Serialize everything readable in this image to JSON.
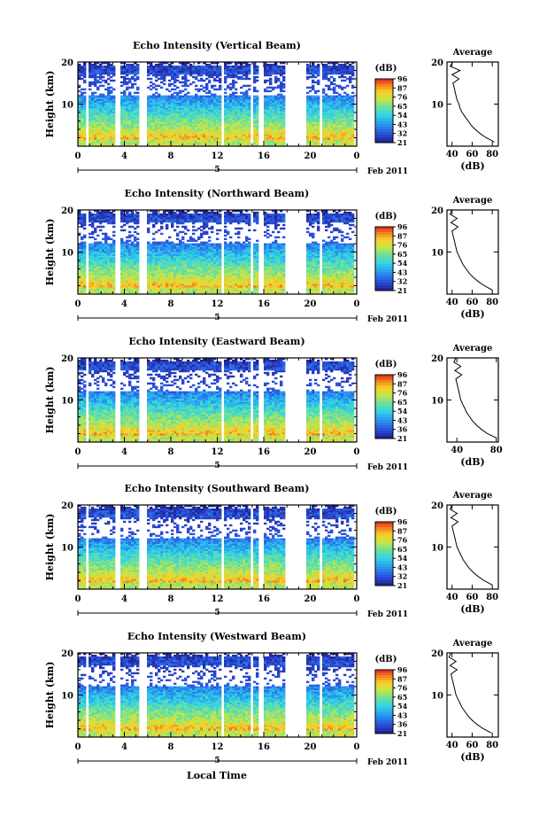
{
  "figure": {
    "bottom_label": "Local Time"
  },
  "chart_data": [
    {
      "type": "heatmap",
      "title": "Echo Intensity (Vertical Beam)",
      "ylabel": "Height (km)",
      "ylim": [
        0,
        20
      ],
      "yticks": [
        10,
        20
      ],
      "xticks": [
        "0",
        "4",
        "8",
        "12",
        "16",
        "20",
        "0"
      ],
      "xlim": [
        0,
        24
      ],
      "date_marker": "5",
      "date_label": "Feb 2011",
      "colorbar": {
        "unit": "(dB)",
        "ticks": [
          "96",
          "87",
          "76",
          "65",
          "54",
          "43",
          "32",
          "21"
        ],
        "range": [
          21,
          96
        ]
      },
      "gaps_hours": [
        [
          0.7,
          1.0
        ],
        [
          3.2,
          3.7
        ],
        [
          5.3,
          5.9
        ],
        [
          12.3,
          12.5
        ],
        [
          14.8,
          15.0
        ],
        [
          15.6,
          16.1
        ],
        [
          17.8,
          19.6
        ],
        [
          20.7,
          21.0
        ],
        [
          23.8,
          24.0
        ]
      ],
      "profile": {
        "title": "Average",
        "xlabel": "(dB)",
        "xticks": [
          40,
          60,
          80
        ],
        "xlim": [
          35,
          86
        ],
        "ylim": [
          0,
          20
        ],
        "yticks": [
          10,
          20
        ]
      },
      "average_profile": {
        "height_km": [
          1,
          2,
          3,
          4,
          5,
          6,
          7,
          8,
          9,
          10,
          11,
          12,
          13,
          14,
          15,
          16,
          17,
          18,
          19,
          20
        ],
        "db": [
          82,
          74,
          68,
          63,
          59,
          56,
          53,
          50,
          48,
          47,
          45,
          44,
          43,
          42,
          41,
          47,
          40,
          48,
          38,
          41
        ]
      }
    },
    {
      "type": "heatmap",
      "title": "Echo Intensity (Northward Beam)",
      "ylabel": "Height (km)",
      "ylim": [
        0,
        20
      ],
      "yticks": [
        10,
        20
      ],
      "xticks": [
        "0",
        "4",
        "8",
        "12",
        "16",
        "20",
        "0"
      ],
      "xlim": [
        0,
        24
      ],
      "date_marker": "5",
      "date_label": "Feb 2011",
      "colorbar": {
        "unit": "(dB)",
        "ticks": [
          "96",
          "87",
          "76",
          "65",
          "54",
          "43",
          "32",
          "21"
        ],
        "range": [
          21,
          96
        ]
      },
      "gaps_hours": [
        [
          0.7,
          1.0
        ],
        [
          3.2,
          3.7
        ],
        [
          5.3,
          5.9
        ],
        [
          12.3,
          12.5
        ],
        [
          14.8,
          15.0
        ],
        [
          15.6,
          16.1
        ],
        [
          17.8,
          19.6
        ],
        [
          20.7,
          21.0
        ],
        [
          23.8,
          24.0
        ]
      ],
      "profile": {
        "title": "Average",
        "xlabel": "(dB)",
        "xticks": [
          40,
          60,
          80
        ],
        "xlim": [
          35,
          86
        ],
        "ylim": [
          0,
          20
        ],
        "yticks": [
          10,
          20
        ]
      },
      "average_profile": {
        "height_km": [
          1,
          2,
          3,
          4,
          5,
          6,
          7,
          8,
          9,
          10,
          11,
          12,
          13,
          14,
          15,
          16,
          17,
          18,
          19,
          20
        ],
        "db": [
          80,
          72,
          66,
          61,
          57,
          54,
          51,
          49,
          47,
          45,
          44,
          43,
          42,
          41,
          40,
          46,
          39,
          45,
          38,
          40
        ]
      }
    },
    {
      "type": "heatmap",
      "title": "Echo Intensity (Eastward Beam)",
      "ylabel": "Height (km)",
      "ylim": [
        0,
        20
      ],
      "yticks": [
        10,
        20
      ],
      "xticks": [
        "0",
        "4",
        "8",
        "12",
        "16",
        "20",
        "0"
      ],
      "xlim": [
        0,
        24
      ],
      "date_marker": "5",
      "date_label": "Feb 2011",
      "colorbar": {
        "unit": "(dB)",
        "ticks": [
          "96",
          "87",
          "76",
          "65",
          "54",
          "43",
          "36",
          "21"
        ],
        "range": [
          21,
          96
        ]
      },
      "gaps_hours": [
        [
          0.7,
          1.0
        ],
        [
          3.2,
          3.7
        ],
        [
          5.3,
          5.9
        ],
        [
          12.3,
          12.5
        ],
        [
          14.8,
          15.0
        ],
        [
          15.6,
          16.1
        ],
        [
          17.8,
          19.6
        ],
        [
          20.7,
          21.0
        ],
        [
          23.8,
          24.0
        ]
      ],
      "profile": {
        "title": "Average",
        "xlabel": "(dB)",
        "xticks": [
          40,
          80
        ],
        "xlim": [
          30,
          82
        ],
        "ylim": [
          0,
          20
        ],
        "yticks": [
          10,
          20
        ]
      },
      "average_profile": {
        "height_km": [
          1,
          2,
          3,
          4,
          5,
          6,
          7,
          8,
          9,
          10,
          11,
          12,
          13,
          14,
          15,
          16,
          17,
          18,
          19,
          20
        ],
        "db": [
          80,
          71,
          65,
          60,
          56,
          53,
          50,
          48,
          46,
          44,
          43,
          42,
          41,
          40,
          39,
          45,
          38,
          44,
          37,
          39
        ]
      }
    },
    {
      "type": "heatmap",
      "title": "Echo Intensity (Southward Beam)",
      "ylabel": "Height (km)",
      "ylim": [
        0,
        20
      ],
      "yticks": [
        10,
        20
      ],
      "xticks": [
        "0",
        "4",
        "8",
        "12",
        "16",
        "20",
        "0"
      ],
      "xlim": [
        0,
        24
      ],
      "date_marker": "5",
      "date_label": "Feb 2011",
      "colorbar": {
        "unit": "(dB)",
        "ticks": [
          "96",
          "87",
          "76",
          "65",
          "54",
          "43",
          "32",
          "21"
        ],
        "range": [
          21,
          96
        ]
      },
      "gaps_hours": [
        [
          0.7,
          1.0
        ],
        [
          3.2,
          3.7
        ],
        [
          5.3,
          5.9
        ],
        [
          12.3,
          12.5
        ],
        [
          14.8,
          15.0
        ],
        [
          15.6,
          16.1
        ],
        [
          17.8,
          19.6
        ],
        [
          20.7,
          21.0
        ],
        [
          23.8,
          24.0
        ]
      ],
      "profile": {
        "title": "Average",
        "xlabel": "(dB)",
        "xticks": [
          40,
          60,
          80
        ],
        "xlim": [
          35,
          86
        ],
        "ylim": [
          0,
          20
        ],
        "yticks": [
          10,
          20
        ]
      },
      "average_profile": {
        "height_km": [
          1,
          2,
          3,
          4,
          5,
          6,
          7,
          8,
          9,
          10,
          11,
          12,
          13,
          14,
          15,
          16,
          17,
          18,
          19,
          20
        ],
        "db": [
          80,
          72,
          66,
          61,
          57,
          54,
          51,
          49,
          47,
          45,
          44,
          43,
          42,
          41,
          40,
          46,
          39,
          45,
          38,
          40
        ]
      }
    },
    {
      "type": "heatmap",
      "title": "Echo Intensity (Westward Beam)",
      "ylabel": "Height (km)",
      "ylim": [
        0,
        20
      ],
      "yticks": [
        10,
        20
      ],
      "xticks": [
        "0",
        "4",
        "8",
        "12",
        "16",
        "20",
        "0"
      ],
      "xlim": [
        0,
        24
      ],
      "date_marker": "5",
      "date_label": "Feb 2011",
      "colorbar": {
        "unit": "(dB)",
        "ticks": [
          "96",
          "87",
          "76",
          "65",
          "54",
          "43",
          "36",
          "21"
        ],
        "range": [
          21,
          96
        ]
      },
      "gaps_hours": [
        [
          0.7,
          1.0
        ],
        [
          3.2,
          3.7
        ],
        [
          5.3,
          5.9
        ],
        [
          12.3,
          12.5
        ],
        [
          14.8,
          15.0
        ],
        [
          15.6,
          16.1
        ],
        [
          17.8,
          19.6
        ],
        [
          20.7,
          21.0
        ],
        [
          23.8,
          24.0
        ]
      ],
      "profile": {
        "title": "Average",
        "xlabel": "(dB)",
        "xticks": [
          40,
          60,
          80
        ],
        "xlim": [
          35,
          86
        ],
        "ylim": [
          0,
          20
        ],
        "yticks": [
          10,
          20
        ]
      },
      "average_profile": {
        "height_km": [
          1,
          2,
          3,
          4,
          5,
          6,
          7,
          8,
          9,
          10,
          11,
          12,
          13,
          14,
          15,
          16,
          17,
          18,
          19,
          20
        ],
        "db": [
          79,
          71,
          65,
          60,
          56,
          53,
          50,
          48,
          46,
          44,
          43,
          42,
          41,
          40,
          39,
          45,
          38,
          44,
          37,
          39
        ]
      }
    }
  ]
}
